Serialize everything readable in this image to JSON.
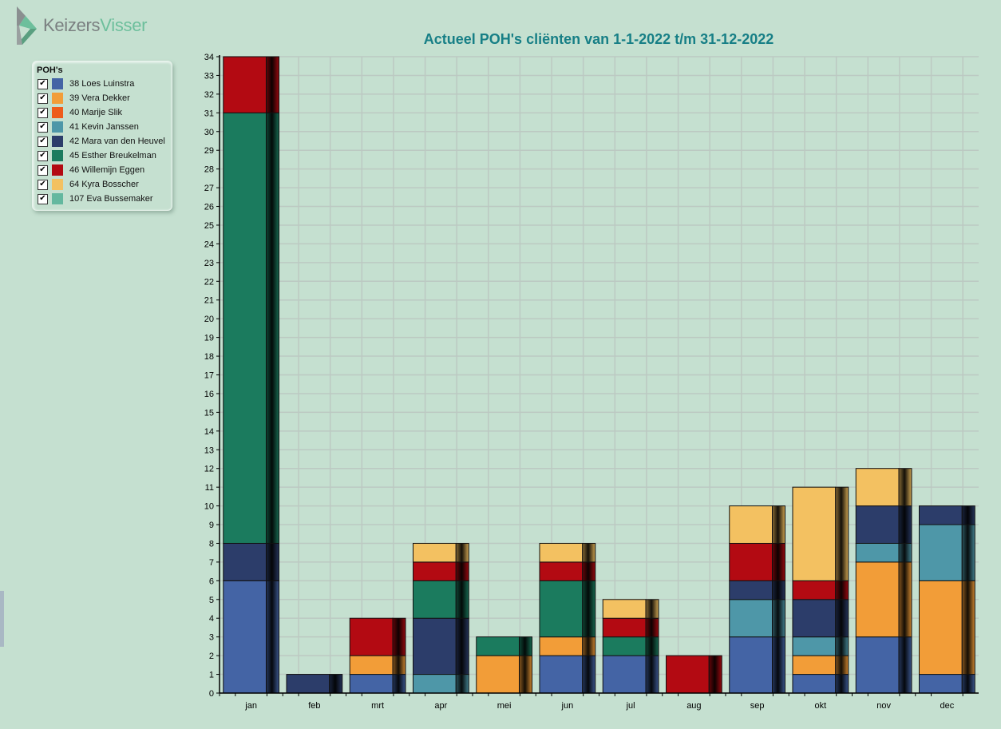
{
  "logo": {
    "part1": "Keizers",
    "part2": "Visser"
  },
  "legend": {
    "title": "POH's",
    "items": [
      {
        "label": "38 Loes Luinstra",
        "color": "#4464a5",
        "checked": true
      },
      {
        "label": "39 Vera Dekker",
        "color": "#f29d38",
        "checked": true
      },
      {
        "label": "40 Marije Slik",
        "color": "#ee5c1b",
        "checked": true
      },
      {
        "label": "41 Kevin Janssen",
        "color": "#4e97a8",
        "checked": true
      },
      {
        "label": "42 Mara van den Heuvel",
        "color": "#2c3d6a",
        "checked": true
      },
      {
        "label": "45 Esther Breukelman",
        "color": "#1b7b5e",
        "checked": true
      },
      {
        "label": "46 Willemijn Eggen",
        "color": "#b30a12",
        "checked": true
      },
      {
        "label": "64 Kyra Bosscher",
        "color": "#f3c161",
        "checked": true
      },
      {
        "label": "107 Eva Bussemaker",
        "color": "#64b89f",
        "checked": true
      }
    ]
  },
  "chart_data": {
    "type": "bar",
    "stacked": true,
    "title": "Actueel POH's cliënten van 1-1-2022 t/m 31-12-2022",
    "categories": [
      "jan",
      "feb",
      "mrt",
      "apr",
      "mei",
      "jun",
      "jul",
      "aug",
      "sep",
      "okt",
      "nov",
      "dec"
    ],
    "ylim": [
      0,
      34
    ],
    "ytick_step": 1,
    "grid": true,
    "series": [
      {
        "name": "38 Loes Luinstra",
        "color": "#4464a5",
        "values": [
          6,
          0,
          1,
          0,
          0,
          2,
          2,
          0,
          3,
          1,
          3,
          1
        ]
      },
      {
        "name": "39 Vera Dekker",
        "color": "#f29d38",
        "values": [
          0,
          0,
          1,
          0,
          2,
          1,
          0,
          0,
          0,
          1,
          4,
          5
        ]
      },
      {
        "name": "40 Marije Slik",
        "color": "#ee5c1b",
        "values": [
          0,
          0,
          0,
          0,
          0,
          0,
          0,
          0,
          0,
          0,
          0,
          0
        ]
      },
      {
        "name": "41 Kevin Janssen",
        "color": "#4e97a8",
        "values": [
          0,
          0,
          0,
          1,
          0,
          0,
          0,
          0,
          2,
          1,
          1,
          3
        ]
      },
      {
        "name": "42 Mara van den Heuvel",
        "color": "#2c3d6a",
        "values": [
          2,
          1,
          0,
          3,
          0,
          0,
          0,
          0,
          1,
          2,
          2,
          1
        ]
      },
      {
        "name": "45 Esther Breukelman",
        "color": "#1b7b5e",
        "values": [
          23,
          0,
          0,
          2,
          1,
          3,
          1,
          0,
          0,
          0,
          0,
          0
        ]
      },
      {
        "name": "46 Willemijn Eggen",
        "color": "#b30a12",
        "values": [
          3,
          0,
          2,
          1,
          0,
          1,
          1,
          2,
          2,
          1,
          0,
          0
        ]
      },
      {
        "name": "64 Kyra Bosscher",
        "color": "#f3c161",
        "values": [
          0,
          0,
          0,
          1,
          0,
          1,
          1,
          0,
          2,
          5,
          2,
          0
        ]
      },
      {
        "name": "107 Eva Bussemaker",
        "color": "#64b89f",
        "values": [
          0,
          0,
          0,
          0,
          0,
          0,
          0,
          0,
          0,
          0,
          0,
          0
        ]
      }
    ]
  }
}
